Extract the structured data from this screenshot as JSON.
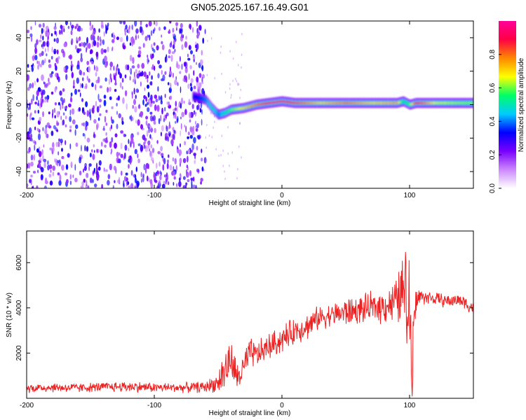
{
  "title": "GN05.2025.167.16.49.G01",
  "chart_data": [
    {
      "type": "heatmap",
      "xlabel": "Height of straight line (km)",
      "ylabel": "Frequency (Hz)",
      "xlim": [
        -200,
        150
      ],
      "ylim": [
        -50,
        50
      ],
      "xticks": [
        "-200",
        "-100",
        "0",
        "100"
      ],
      "xtick_values": [
        -200,
        -100,
        0,
        100
      ],
      "yticks": [
        "40",
        "20",
        "0",
        "-20",
        "-40"
      ],
      "ytick_values": [
        40,
        20,
        0,
        -20,
        -40
      ],
      "colorbar": {
        "label": "Normalized spectral amplitude",
        "range": [
          0,
          1
        ],
        "ticks": [
          "0.0",
          "0.2",
          "0.4",
          "0.6",
          "0.8"
        ],
        "tick_values": [
          0.0,
          0.2,
          0.4,
          0.6,
          0.8
        ],
        "colormap": [
          "#ffffff",
          "#cc88ff",
          "#7a00ff",
          "#0000ff",
          "#00ccff",
          "#00ff66",
          "#ffff00",
          "#ff8800",
          "#ff0044",
          "#ff0099"
        ]
      },
      "noise_region": {
        "x": [
          -200,
          -60
        ],
        "y": [
          -50,
          50
        ]
      },
      "ridge": {
        "x": [
          -70,
          -60,
          -55,
          -50,
          -45,
          -40,
          -30,
          -20,
          -10,
          0,
          10,
          30,
          50,
          70,
          90,
          95,
          100,
          105,
          120,
          150
        ],
        "freq": [
          5,
          3,
          -2,
          -6,
          -5,
          -3,
          -2,
          0,
          1,
          2,
          1,
          1,
          1,
          1,
          1,
          2,
          0,
          1,
          1,
          1
        ],
        "amplitude": [
          0.3,
          0.4,
          0.5,
          0.4,
          0.5,
          0.6,
          0.7,
          0.8,
          0.9,
          0.95,
          0.85,
          0.7,
          0.8,
          0.7,
          0.75,
          0.5,
          0.6,
          0.9,
          0.65,
          0.6
        ]
      },
      "grid": false
    },
    {
      "type": "line",
      "xlabel": "Height of straight line (km)",
      "ylabel": "SNR (10 * v/v)",
      "xlim": [
        -200,
        150
      ],
      "ylim": [
        0,
        7400
      ],
      "xticks": [
        "-200",
        "-100",
        "0",
        "100"
      ],
      "xtick_values": [
        -200,
        -100,
        0,
        100
      ],
      "yticks": [
        "6000",
        "4000",
        "2000"
      ],
      "ytick_values": [
        6000,
        4000,
        2000
      ],
      "color": "#ee2222",
      "series": [
        {
          "x": [
            -200,
            -180,
            -160,
            -140,
            -120,
            -100,
            -80,
            -60,
            -50,
            -45,
            -40,
            -35,
            -30,
            -25,
            -20,
            -10,
            0,
            10,
            20,
            30,
            40,
            50,
            60,
            70,
            80,
            90,
            95,
            100,
            103,
            105,
            110,
            120,
            130,
            140,
            150
          ],
          "values": [
            450,
            480,
            460,
            500,
            520,
            480,
            470,
            500,
            700,
            1200,
            1700,
            900,
            1300,
            2000,
            1900,
            2300,
            2600,
            3000,
            3200,
            3600,
            3700,
            3800,
            3900,
            4000,
            4100,
            4300,
            4800,
            3800,
            2200,
            4400,
            4500,
            4400,
            4300,
            4350,
            4000
          ],
          "spread": [
            250,
            250,
            250,
            250,
            300,
            250,
            250,
            300,
            500,
            1300,
            1000,
            800,
            900,
            800,
            700,
            700,
            700,
            700,
            700,
            600,
            600,
            800,
            700,
            800,
            900,
            1200,
            2200,
            3400,
            3400,
            800,
            400,
            350,
            350,
            350,
            450
          ]
        }
      ],
      "grid": false
    }
  ]
}
